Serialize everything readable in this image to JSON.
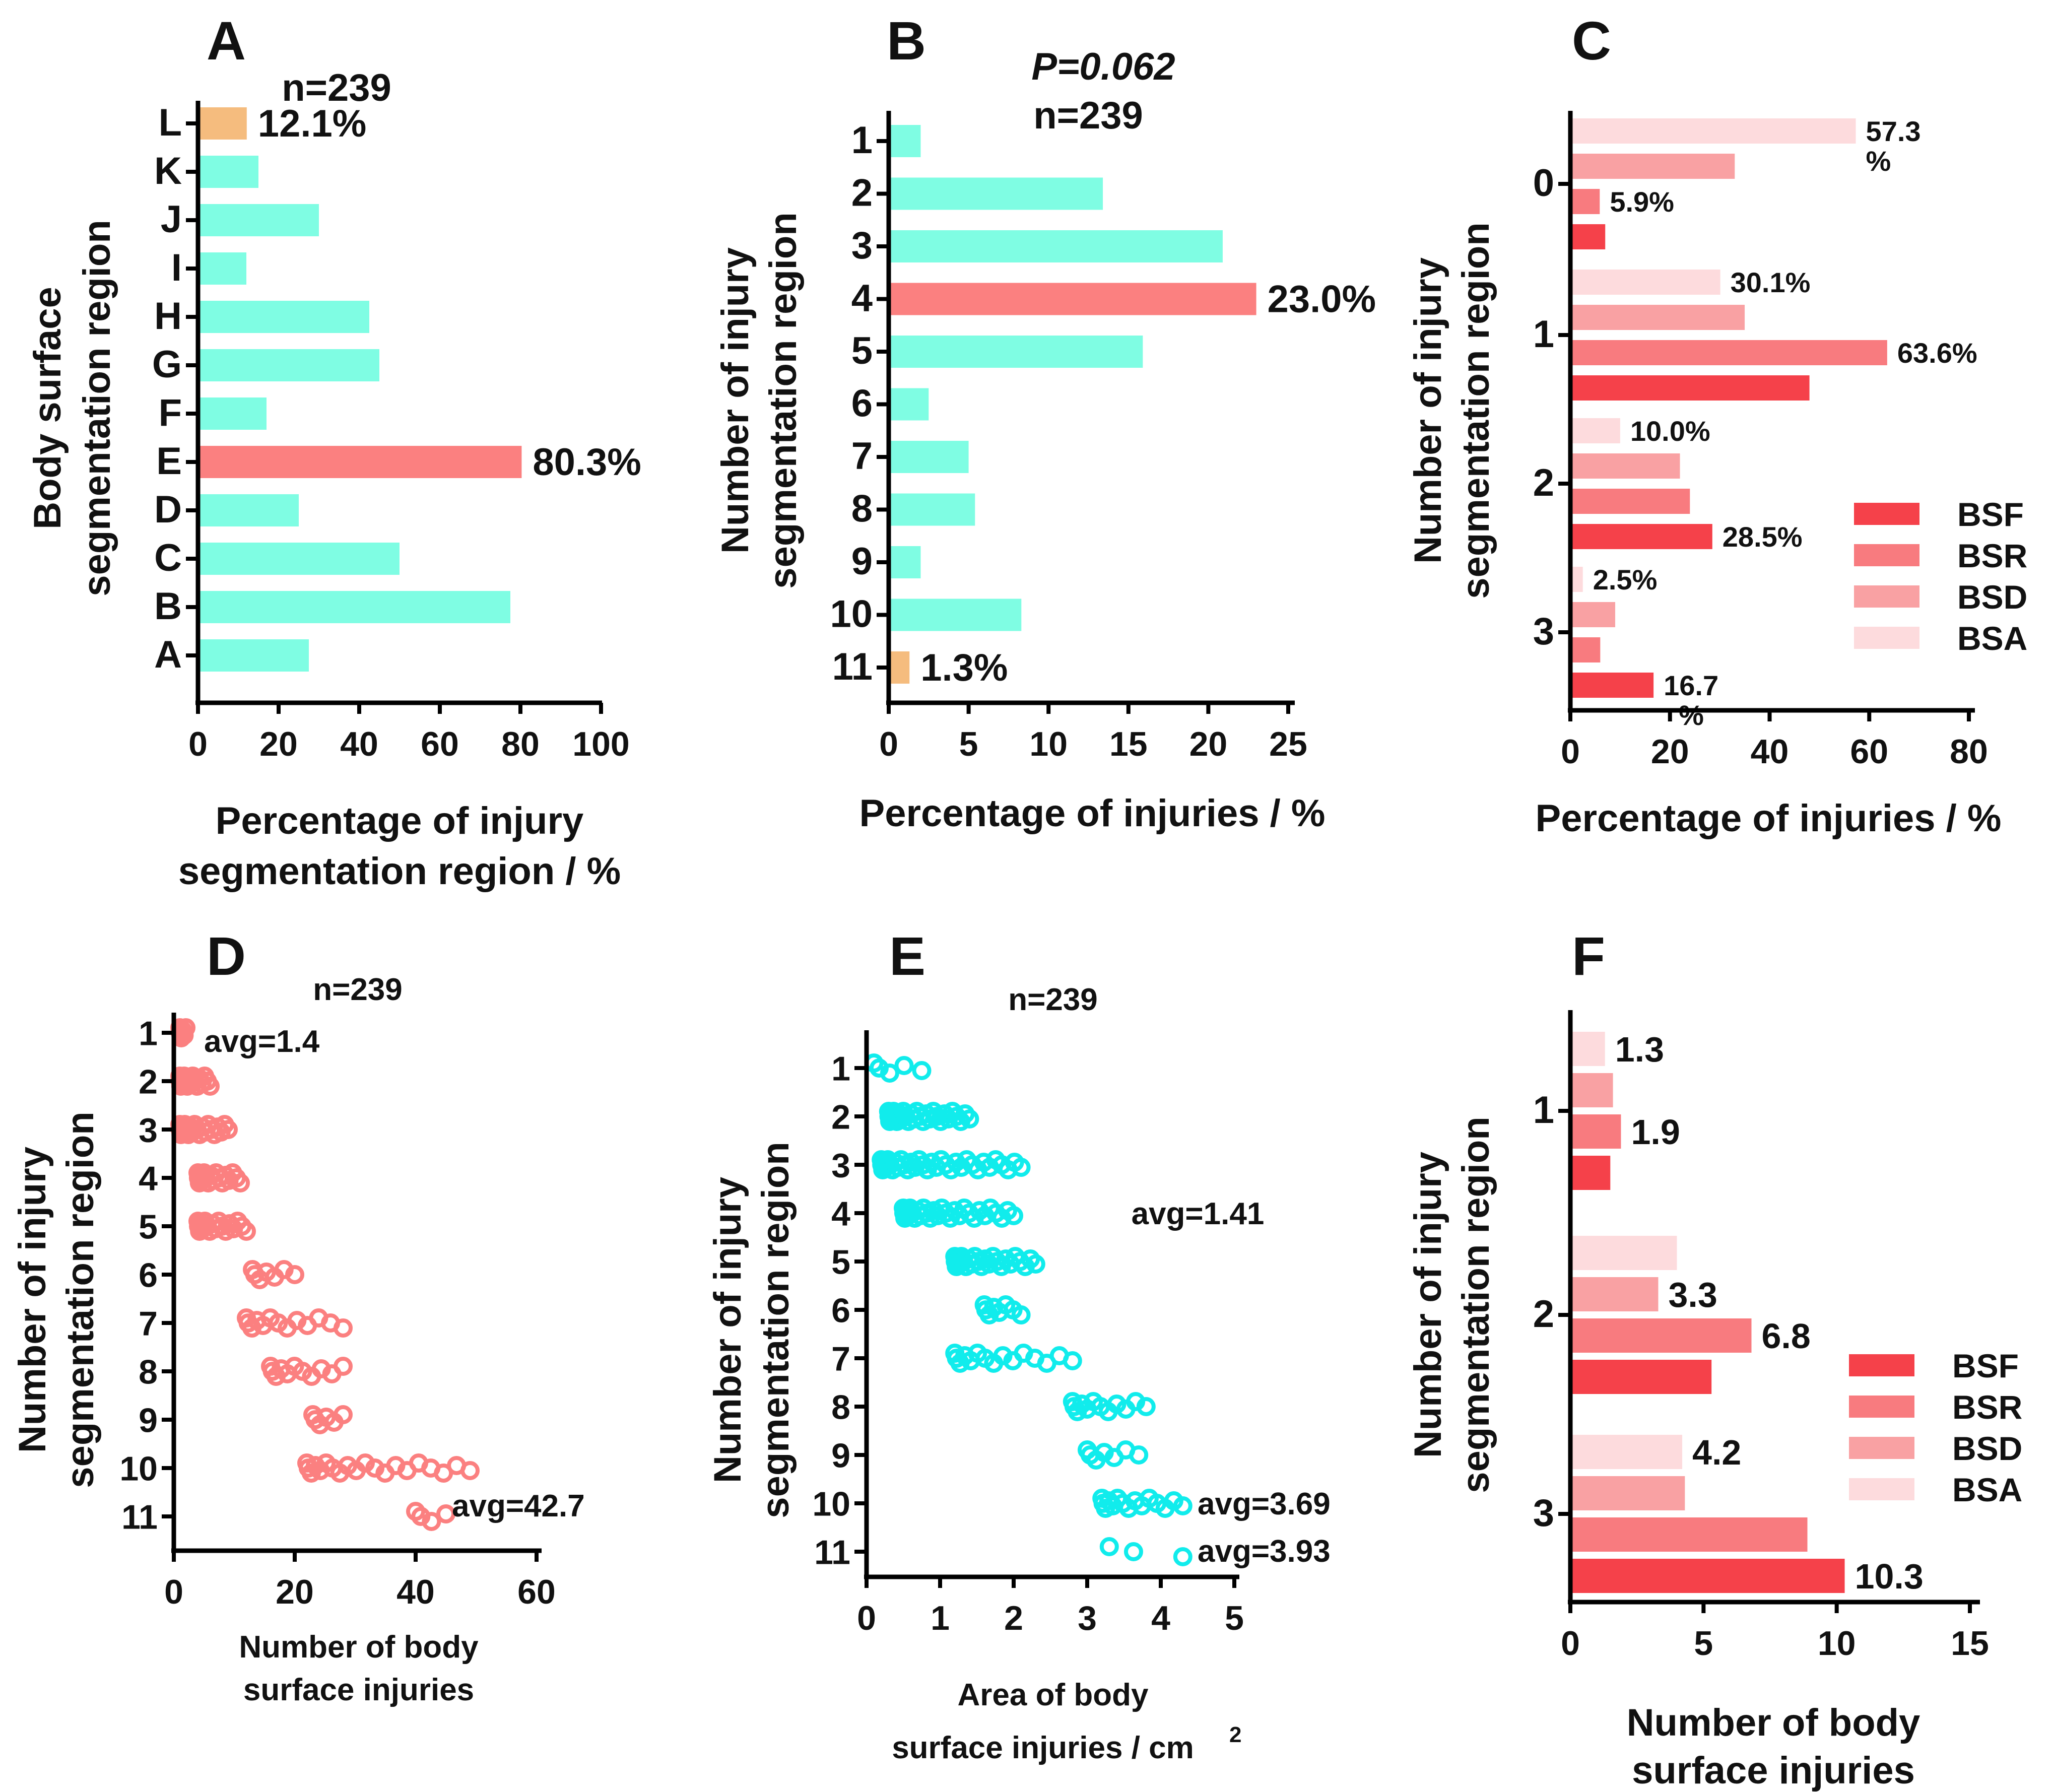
{
  "colors": {
    "teal": "#7ffde3",
    "salmon": "#fb8080",
    "orange": "#f5bc7e",
    "cyan": "#11ecec",
    "bsf": "#f5414a",
    "bsr": "#f87b7f",
    "bsd": "#f9a1a3",
    "bsa": "#fddbdd"
  },
  "chart_data": [
    {
      "id": "A",
      "type": "bar",
      "orientation": "horizontal",
      "title": "A",
      "subtitle": "n=239",
      "xlabel": [
        "Percentage of injury",
        "segmentation region / %"
      ],
      "ylabel": [
        "Body surface",
        "segmentation region"
      ],
      "xlim": [
        0,
        100
      ],
      "xticks": [
        "0",
        "20",
        "40",
        "60",
        "80",
        "100"
      ],
      "categories": [
        "L",
        "K",
        "J",
        "I",
        "H",
        "G",
        "F",
        "E",
        "D",
        "C",
        "B",
        "A"
      ],
      "values": [
        12.1,
        15,
        30,
        12,
        42.5,
        45,
        17,
        80.3,
        25,
        50,
        77.5,
        27.5
      ],
      "bar_colors": [
        "orange",
        "teal",
        "teal",
        "teal",
        "teal",
        "teal",
        "teal",
        "salmon",
        "teal",
        "teal",
        "teal",
        "teal"
      ],
      "annotations": [
        {
          "category": "L",
          "text": "12.1%"
        },
        {
          "category": "E",
          "text": "80.3%"
        }
      ]
    },
    {
      "id": "B",
      "type": "bar",
      "orientation": "horizontal",
      "title": "B",
      "subtitle": "P=0.062",
      "subtitle2": "n=239",
      "xlabel": [
        "Percentage of injuries / %"
      ],
      "ylabel": [
        "Number of injury",
        "segmentation region"
      ],
      "xlim": [
        0,
        25
      ],
      "xticks": [
        "0",
        "5",
        "10",
        "15",
        "20",
        "25"
      ],
      "categories": [
        "1",
        "2",
        "3",
        "4",
        "5",
        "6",
        "7",
        "8",
        "9",
        "10",
        "11"
      ],
      "values": [
        2,
        13.4,
        20.9,
        23,
        15.9,
        2.5,
        5,
        5.4,
        2,
        8.3,
        1.3
      ],
      "bar_colors": [
        "teal",
        "teal",
        "teal",
        "salmon",
        "teal",
        "teal",
        "teal",
        "teal",
        "teal",
        "teal",
        "orange"
      ],
      "annotations": [
        {
          "category": "4",
          "text": "23.0%"
        },
        {
          "category": "11",
          "text": "1.3%"
        }
      ]
    },
    {
      "id": "C",
      "type": "bar",
      "orientation": "horizontal",
      "title": "C",
      "xlabel": [
        "Percentage of injuries / %"
      ],
      "ylabel": [
        "Number of injury",
        "segmentation region"
      ],
      "xlim": [
        0,
        80
      ],
      "xticks": [
        "0",
        "20",
        "40",
        "60",
        "80"
      ],
      "categories": [
        "0",
        "1",
        "2",
        "3"
      ],
      "series": [
        {
          "name": "BSA",
          "values": [
            57.3,
            30.1,
            10.0,
            2.5
          ]
        },
        {
          "name": "BSD",
          "values": [
            33,
            35,
            22,
            9
          ]
        },
        {
          "name": "BSR",
          "values": [
            5.9,
            63.6,
            24,
            6
          ]
        },
        {
          "name": "BSF",
          "values": [
            7,
            48,
            28.5,
            16.7
          ]
        }
      ],
      "legend": [
        "BSF",
        "BSR",
        "BSD",
        "BSA"
      ],
      "annotations": [
        {
          "category": "0",
          "series": "BSA",
          "text": "57.3",
          "text2": "%"
        },
        {
          "category": "0",
          "series": "BSR",
          "text": "5.9%"
        },
        {
          "category": "1",
          "series": "BSA",
          "text": "30.1%"
        },
        {
          "category": "1",
          "series": "BSR",
          "text": "63.6%"
        },
        {
          "category": "2",
          "series": "BSA",
          "text": "10.0%"
        },
        {
          "category": "2",
          "series": "BSF",
          "text": "28.5%"
        },
        {
          "category": "3",
          "series": "BSA",
          "text": "2.5%"
        },
        {
          "category": "3",
          "series": "BSF",
          "text": "16.7",
          "text2": "%"
        }
      ]
    },
    {
      "id": "D",
      "type": "scatter",
      "title": "D",
      "subtitle": "n=239",
      "xlabel": [
        "Number of body",
        "surface injuries"
      ],
      "ylabel": [
        "Number of injury",
        "segmentation region"
      ],
      "xlim": [
        0,
        60
      ],
      "xticks": [
        "0",
        "20",
        "40",
        "60"
      ],
      "categories": [
        "1",
        "2",
        "3",
        "4",
        "5",
        "6",
        "7",
        "8",
        "9",
        "10",
        "11"
      ],
      "ranges": [
        [
          1,
          2
        ],
        [
          1,
          6
        ],
        [
          1,
          9
        ],
        [
          4,
          11
        ],
        [
          4,
          12
        ],
        [
          13,
          20
        ],
        [
          12,
          28
        ],
        [
          16,
          28
        ],
        [
          23,
          28
        ],
        [
          22,
          49
        ],
        [
          40,
          45
        ]
      ],
      "counts": [
        6,
        18,
        22,
        18,
        18,
        7,
        13,
        11,
        6,
        20,
        4
      ],
      "annotations": [
        {
          "category": "1",
          "text": "avg=1.4"
        },
        {
          "category": "11",
          "text": "avg=42.7"
        }
      ]
    },
    {
      "id": "E",
      "type": "scatter",
      "title": "E",
      "subtitle": "n=239",
      "xlabel": [
        "Area of body",
        "surface injuries / cm",
        "2"
      ],
      "ylabel": [
        "Number of injury",
        "segmentation region"
      ],
      "xlim": [
        0,
        5
      ],
      "xticks": [
        "0",
        "1",
        "2",
        "3",
        "4",
        "5"
      ],
      "categories": [
        "1",
        "2",
        "3",
        "4",
        "5",
        "6",
        "7",
        "8",
        "9",
        "10",
        "11"
      ],
      "ranges": [
        [
          0.1,
          0.75
        ],
        [
          0.3,
          1.4
        ],
        [
          0.2,
          2.1
        ],
        [
          0.5,
          2.0
        ],
        [
          1.2,
          2.3
        ],
        [
          1.6,
          2.1
        ],
        [
          1.2,
          2.8
        ],
        [
          2.8,
          3.8
        ],
        [
          3.0,
          3.7
        ],
        [
          3.2,
          4.3
        ],
        [
          3.3,
          4.3
        ]
      ],
      "counts": [
        5,
        30,
        35,
        30,
        25,
        8,
        15,
        12,
        7,
        15,
        3
      ],
      "annotations": [
        {
          "category": "4",
          "text": "avg=1.41"
        },
        {
          "category": "10",
          "text": "avg=3.69"
        },
        {
          "category": "11",
          "text": "avg=3.93"
        }
      ]
    },
    {
      "id": "F",
      "type": "bar",
      "orientation": "horizontal",
      "title": "F",
      "xlabel": [
        "Number of body",
        "surface injuries"
      ],
      "ylabel": [
        "Number of injury",
        "segmentation region"
      ],
      "xlim": [
        0,
        15
      ],
      "xticks": [
        "0",
        "5",
        "10",
        "15"
      ],
      "categories": [
        "1",
        "2",
        "3"
      ],
      "series": [
        {
          "name": "BSA",
          "values": [
            1.3,
            4.0,
            4.2
          ]
        },
        {
          "name": "BSD",
          "values": [
            1.6,
            3.3,
            4.3
          ]
        },
        {
          "name": "BSR",
          "values": [
            1.9,
            6.8,
            8.9
          ]
        },
        {
          "name": "BSF",
          "values": [
            1.5,
            5.3,
            10.3
          ]
        }
      ],
      "legend": [
        "BSF",
        "BSR",
        "BSD",
        "BSA"
      ],
      "annotations": [
        {
          "category": "1",
          "series": "BSA",
          "text": "1.3"
        },
        {
          "category": "1",
          "series": "BSR",
          "text": "1.9"
        },
        {
          "category": "2",
          "series": "BSD",
          "text": "3.3"
        },
        {
          "category": "2",
          "series": "BSR",
          "text": "6.8"
        },
        {
          "category": "3",
          "series": "BSA",
          "text": "4.2"
        },
        {
          "category": "3",
          "series": "BSF",
          "text": "10.3"
        }
      ]
    }
  ]
}
